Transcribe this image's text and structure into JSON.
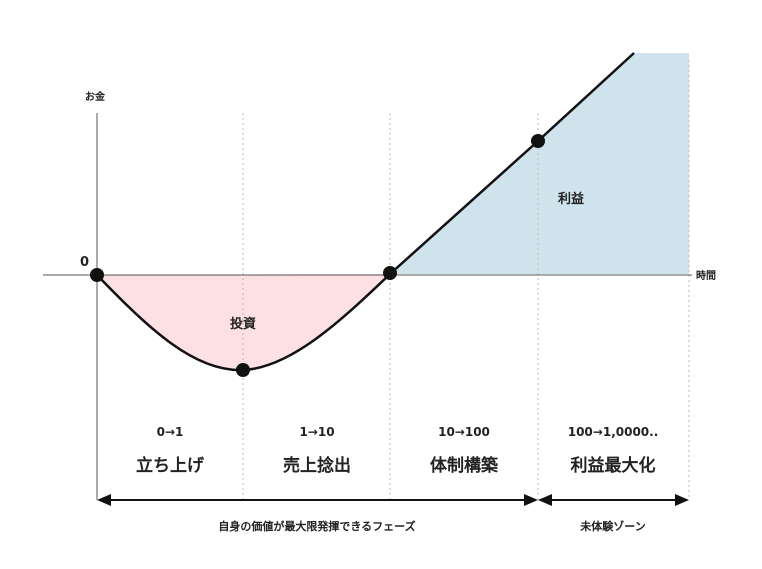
{
  "axes": {
    "y_label": "お金",
    "x_label": "時間",
    "origin_label": "0"
  },
  "areas": {
    "investment": "投資",
    "profit": "利益"
  },
  "stages": [
    {
      "code": "0→1",
      "name": "立ち上げ"
    },
    {
      "code": "1→10",
      "name": "売上捻出"
    },
    {
      "code": "10→100",
      "name": "体制構築"
    },
    {
      "code": "100→1,0000..",
      "name": "利益最大化"
    }
  ],
  "phases": [
    {
      "label": "自身の価値が最大限発揮できるフェーズ"
    },
    {
      "label": "未体験ゾーン"
    }
  ],
  "colors": {
    "investment_fill": "#fde0e3",
    "profit_fill": "#cfe3ec",
    "line": "#111111",
    "divider": "#bbbbbb"
  }
}
